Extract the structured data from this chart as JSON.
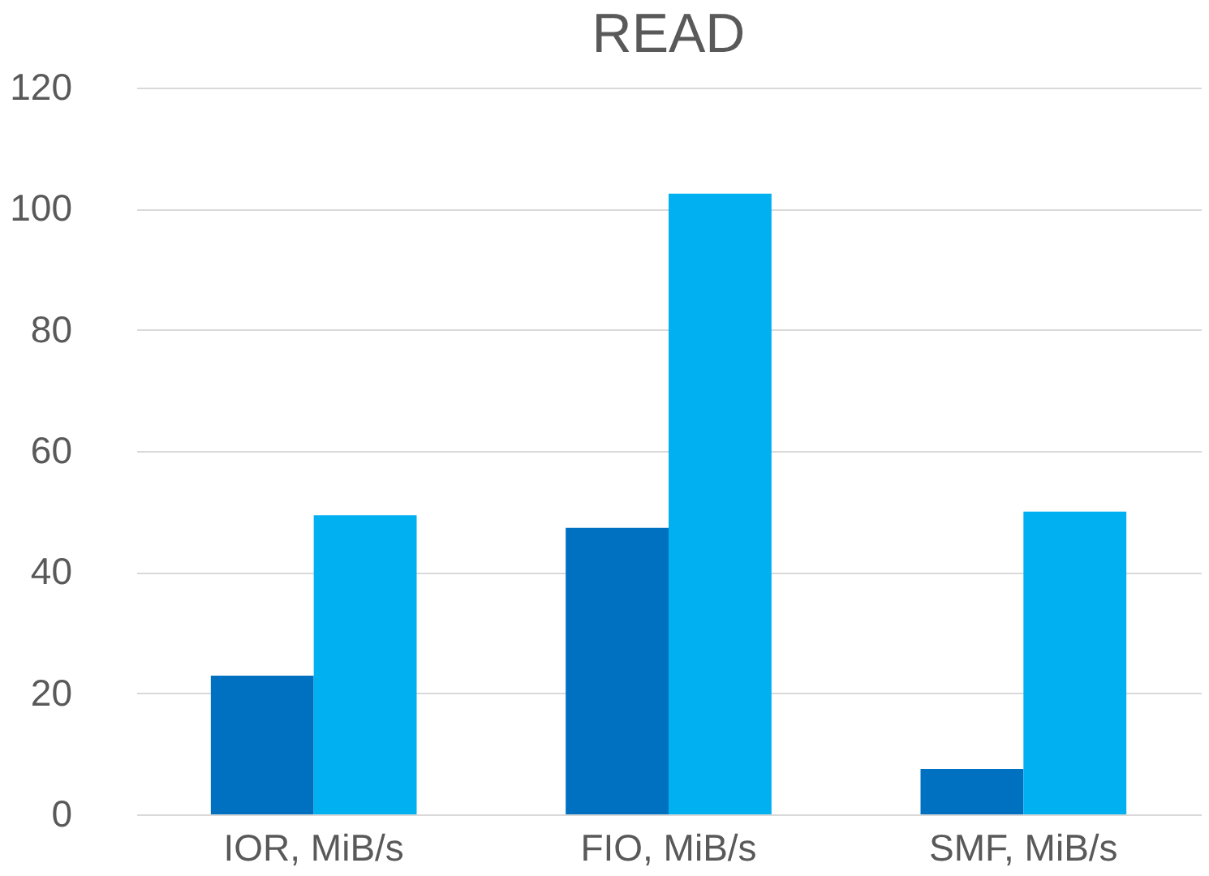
{
  "chart_data": {
    "type": "bar",
    "title": "READ",
    "categories": [
      "IOR, MiB/s",
      "FIO, MiB/s",
      "SMF, MiB/s"
    ],
    "series": [
      {
        "color": "#0070c0",
        "values": [
          22.9,
          47.3,
          7.5
        ]
      },
      {
        "color": "#00b0f0",
        "values": [
          49.4,
          102.5,
          50.0
        ]
      }
    ],
    "ylim": [
      0,
      120
    ],
    "yticks": [
      0,
      20,
      40,
      60,
      80,
      100,
      120
    ],
    "grid": "y",
    "legend": false
  }
}
